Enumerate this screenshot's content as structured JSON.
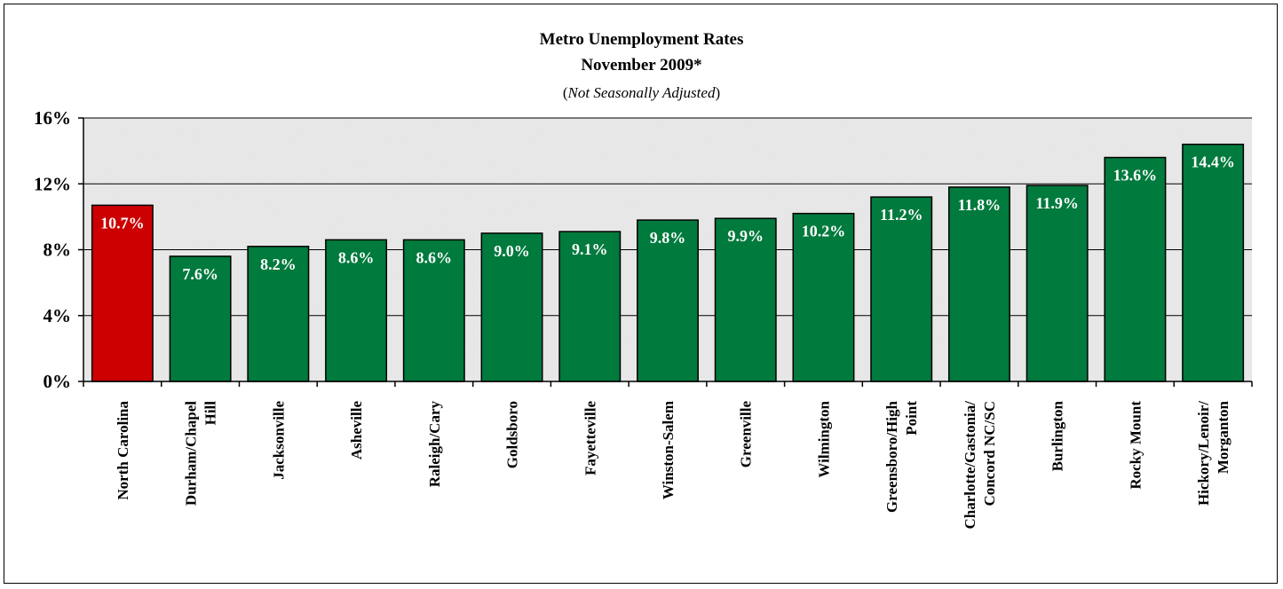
{
  "chart_data": {
    "type": "bar",
    "title": "Metro Unemployment Rates",
    "subtitle": "November 2009*",
    "note_prefix": "(",
    "note": "Not Seasonally Adjusted",
    "note_suffix": ")",
    "xlabel": "",
    "ylabel": "",
    "ylim": [
      0,
      16
    ],
    "yticks": [
      0,
      4,
      8,
      12,
      16
    ],
    "ytick_labels": [
      "0%",
      "4%",
      "8%",
      "12%",
      "16%"
    ],
    "grid": true,
    "legend": "none",
    "categories": [
      "North Carolina",
      "Durham/Chapel Hill",
      "Jacksonville",
      "Asheville",
      "Raleigh/Cary",
      "Goldsboro",
      "Fayetteville",
      "Winston-Salem",
      "Greenville",
      "Wilmington",
      "Greensboro/High Point",
      "Charlotte/Gastonia/ Concord NC/SC",
      "Burlington",
      "Rocky Mount",
      "Hickory/Lenoir/ Morganton"
    ],
    "category_lines": [
      [
        "North Carolina"
      ],
      [
        "Durham/Chapel",
        "Hill"
      ],
      [
        "Jacksonville"
      ],
      [
        "Asheville"
      ],
      [
        "Raleigh/Cary"
      ],
      [
        "Goldsboro"
      ],
      [
        "Fayetteville"
      ],
      [
        "Winston-Salem"
      ],
      [
        "Greenville"
      ],
      [
        "Wilmington"
      ],
      [
        "Greensboro/High",
        "Point"
      ],
      [
        "Charlotte/Gastonia/",
        "Concord NC/SC"
      ],
      [
        "Burlington"
      ],
      [
        "Rocky Mount"
      ],
      [
        "Hickory/Lenoir/",
        "Morganton"
      ]
    ],
    "values": [
      10.7,
      7.6,
      8.2,
      8.6,
      8.6,
      9.0,
      9.1,
      9.8,
      9.9,
      10.2,
      11.2,
      11.8,
      11.9,
      13.6,
      14.4
    ],
    "data_labels": [
      "10.7%",
      "7.6%",
      "8.2%",
      "8.6%",
      "8.6%",
      "9.0%",
      "9.1%",
      "9.8%",
      "9.9%",
      "10.2%",
      "11.2%",
      "11.8%",
      "11.9%",
      "13.6%",
      "14.4%"
    ],
    "colors": {
      "state": "#cc0000",
      "metro": "#007a3d",
      "plot_bg": "#e6e6e6",
      "label_text": "#ffffff"
    }
  }
}
